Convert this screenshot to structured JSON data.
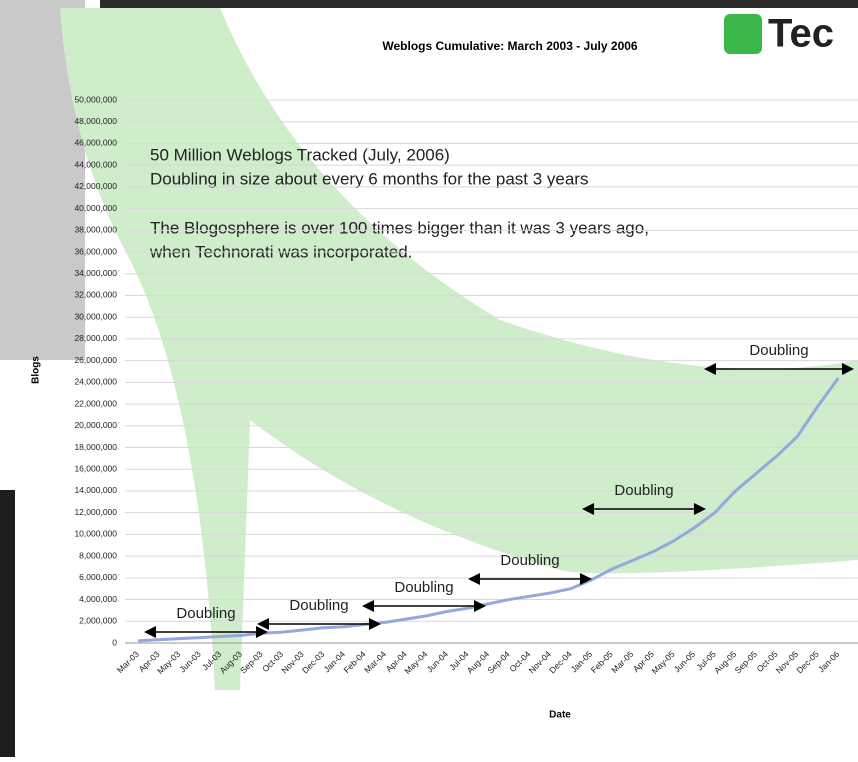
{
  "chart_data": {
    "type": "line",
    "title": "Weblogs Cumulative: March 2003 - July 2006",
    "logo": "Tec",
    "y_label": "Blogs",
    "x_label": "Date",
    "annotations": [
      "50 Million Weblogs Tracked (July, 2006)",
      "Doubling in size about every 6 months for the past 3 years",
      "The Blogosphere is over 100 times bigger than it was 3 years ago,",
      "when Technorati was incorporated."
    ],
    "doubling_labels": [
      "Doubling",
      "Doubling",
      "Doubling",
      "Doubling",
      "Doubling",
      "Doubling"
    ],
    "categories": [
      "Mar-03",
      "Apr-03",
      "May-03",
      "Jun-03",
      "Jul-03",
      "Aug-03",
      "Sep-03",
      "Oct-03",
      "Nov-03",
      "Dec-03",
      "Jan-04",
      "Feb-04",
      "Mar-04",
      "Apr-04",
      "May-04",
      "Jun-04",
      "Jul-04",
      "Aug-04",
      "Sep-04",
      "Oct-04",
      "Nov-04",
      "Dec-04",
      "Jan-05",
      "Feb-05",
      "Mar-05",
      "Apr-05",
      "May-05",
      "Jun-05",
      "Jul-05",
      "Aug-05",
      "Sep-05",
      "Oct-05",
      "Nov-05",
      "Dec-05",
      "Jan-06"
    ],
    "series": [
      {
        "name": "Blogs",
        "color": "#93a9dc",
        "values": [
          200000,
          300000,
          400000,
          500000,
          600000,
          700000,
          900000,
          1000000,
          1200000,
          1400000,
          1500000,
          1700000,
          1900000,
          2200000,
          2500000,
          2900000,
          3200000,
          3600000,
          4000000,
          4300000,
          4600000,
          5000000,
          5800000,
          6800000,
          7600000,
          8400000,
          9400000,
          10600000,
          12000000,
          14000000,
          15600000,
          17200000,
          19000000,
          21800000,
          24400000
        ]
      }
    ],
    "ylim": [
      0,
      50000000
    ],
    "yticks": [
      0,
      {
        "value": 2000000,
        "label": "2,000,000"
      },
      {
        "value": 4000000,
        "label": "4,000,000"
      },
      {
        "value": 6000000,
        "label": "6,000,000"
      },
      {
        "value": 8000000,
        "label": "8,000,000"
      },
      {
        "value": 10000000,
        "label": "10,000,000"
      },
      {
        "value": 12000000,
        "label": "12,000,000"
      },
      {
        "value": 14000000,
        "label": "14,000,000"
      },
      {
        "value": 16000000,
        "label": "16,000,000"
      },
      {
        "value": 18000000,
        "label": "18,000,000"
      },
      {
        "value": 20000000,
        "label": "20,000,000"
      },
      {
        "value": 22000000,
        "label": "22,000,000"
      },
      {
        "value": 24000000,
        "label": "24,000,000"
      },
      {
        "value": 26000000,
        "label": "26,000,000"
      },
      {
        "value": 28000000,
        "label": "28,000,000"
      },
      {
        "value": 30000000,
        "label": "30,000,000"
      },
      {
        "value": 32000000,
        "label": "32,000,000"
      },
      {
        "value": 34000000,
        "label": "34,000,000"
      },
      {
        "value": 36000000,
        "label": "36,000,000"
      },
      {
        "value": 38000000,
        "label": "38,000,000"
      },
      {
        "value": 40000000,
        "label": "40,000,000"
      },
      {
        "value": 42000000,
        "label": "42,000,000"
      },
      {
        "value": 44000000,
        "label": "44,000,000"
      },
      {
        "value": 46000000,
        "label": "46,000,000"
      },
      {
        "value": 48000000,
        "label": "48,000,000"
      },
      {
        "value": 50000000,
        "label": "50,000,000"
      }
    ],
    "grid": true
  }
}
